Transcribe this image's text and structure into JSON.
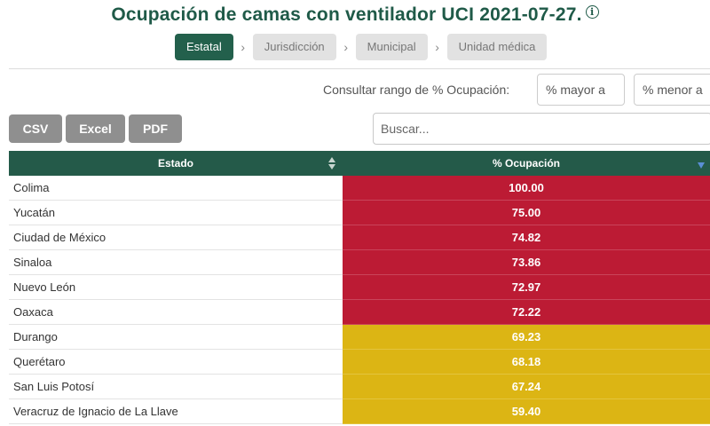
{
  "header": {
    "title": "Ocupación de camas con ventilador UCI 2021-07-27.",
    "info_icon": "ⓘ"
  },
  "breadcrumbs": [
    {
      "label": "Estatal",
      "active": true
    },
    {
      "label": "Jurisdicción",
      "active": false
    },
    {
      "label": "Municipal",
      "active": false
    },
    {
      "label": "Unidad médica",
      "active": false
    }
  ],
  "range_filter": {
    "label": "Consultar rango de % Ocupación:",
    "min_placeholder": "% mayor a",
    "max_placeholder": "% menor a"
  },
  "export": {
    "csv_label": "CSV",
    "excel_label": "Excel",
    "pdf_label": "PDF"
  },
  "search": {
    "placeholder": "Buscar..."
  },
  "table": {
    "columns": [
      "Estado",
      "% Ocupación"
    ],
    "rows": [
      {
        "estado": "Colima",
        "ocupacion": "100.00",
        "level": "red"
      },
      {
        "estado": "Yucatán",
        "ocupacion": "75.00",
        "level": "red"
      },
      {
        "estado": "Ciudad de México",
        "ocupacion": "74.82",
        "level": "red"
      },
      {
        "estado": "Sinaloa",
        "ocupacion": "73.86",
        "level": "red"
      },
      {
        "estado": "Nuevo León",
        "ocupacion": "72.97",
        "level": "red"
      },
      {
        "estado": "Oaxaca",
        "ocupacion": "72.22",
        "level": "red"
      },
      {
        "estado": "Durango",
        "ocupacion": "69.23",
        "level": "yellow"
      },
      {
        "estado": "Querétaro",
        "ocupacion": "68.18",
        "level": "yellow"
      },
      {
        "estado": "San Luis Potosí",
        "ocupacion": "67.24",
        "level": "yellow"
      },
      {
        "estado": "Veracruz de Ignacio de La Llave",
        "ocupacion": "59.40",
        "level": "yellow"
      }
    ]
  },
  "colors": {
    "brand_green": "#23604c",
    "high_occupancy": "#bc1b34",
    "medium_occupancy": "#dcb514"
  }
}
